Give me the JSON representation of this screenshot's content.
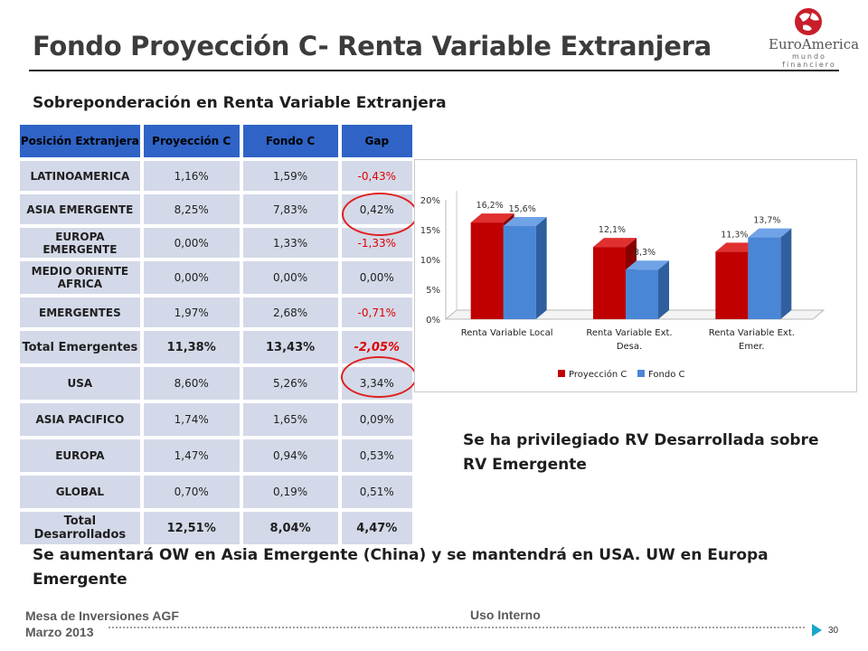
{
  "header": {
    "title": "Fondo Proyección C- Renta Variable Extranjera",
    "logo_name": "EuroAmerica",
    "logo_tagline": "mundo financiero"
  },
  "subtitle": "Sobreponderación en Renta Variable Extranjera",
  "table": {
    "headers": [
      "Posición Extranjera",
      "Proyección C",
      "Fondo C",
      "Gap"
    ],
    "rows": [
      {
        "region": "LATINOAMERICA",
        "proyeccion": "1,16%",
        "fondo": "1,59%",
        "gap": "-0,43%"
      },
      {
        "region": "ASIA EMERGENTE",
        "proyeccion": "8,25%",
        "fondo": "7,83%",
        "gap": "0,42%"
      },
      {
        "region": "EUROPA EMERGENTE",
        "proyeccion": "0,00%",
        "fondo": "1,33%",
        "gap": "-1,33%"
      },
      {
        "region": "MEDIO ORIENTE AFRICA",
        "proyeccion": "0,00%",
        "fondo": "0,00%",
        "gap": "0,00%"
      },
      {
        "region": "EMERGENTES",
        "proyeccion": "1,97%",
        "fondo": "2,68%",
        "gap": "-0,71%"
      },
      {
        "region": "Total Emergentes",
        "proyeccion": "11,38%",
        "fondo": "13,43%",
        "gap": "-2,05%"
      },
      {
        "region": "USA",
        "proyeccion": "8,60%",
        "fondo": "5,26%",
        "gap": "3,34%"
      },
      {
        "region": "ASIA PACIFICO",
        "proyeccion": "1,74%",
        "fondo": "1,65%",
        "gap": "0,09%"
      },
      {
        "region": "EUROPA",
        "proyeccion": "1,47%",
        "fondo": "0,94%",
        "gap": "0,53%"
      },
      {
        "region": "GLOBAL",
        "proyeccion": "0,70%",
        "fondo": "0,19%",
        "gap": "0,51%"
      },
      {
        "region": "Total Desarrollados",
        "proyeccion": "12,51%",
        "fondo": "8,04%",
        "gap": "4,47%"
      }
    ]
  },
  "chart_data": {
    "type": "bar",
    "categories": [
      "Renta Variable Local",
      "Renta Variable Ext. Desa.",
      "Renta Variable Ext. Emer."
    ],
    "series": [
      {
        "name": "Proyección C",
        "values": [
          16.2,
          12.1,
          11.3
        ],
        "labels": [
          "16,2%",
          "12,1%",
          "11,3%"
        ],
        "color": "#c00000"
      },
      {
        "name": "Fondo C",
        "values": [
          15.6,
          8.3,
          13.7
        ],
        "labels": [
          "15,6%",
          "8,3%",
          "13,7%"
        ],
        "color": "#4a86d6"
      }
    ],
    "yticks": [
      "0%",
      "5%",
      "10%",
      "15%",
      "20%"
    ],
    "ylim": [
      0,
      20
    ],
    "legend": "bottom",
    "grid": false,
    "style": "3d"
  },
  "notes": {
    "note1": "Se ha privilegiado RV Desarrollada sobre RV Emergente",
    "note2": "Se aumentará OW en Asia Emergente (China) y se mantendrá en  USA. UW en Europa Emergente"
  },
  "footer": {
    "line1": "Mesa de Inversiones AGF",
    "line2": "Marzo 2013",
    "center": "Uso Interno",
    "page": "30"
  }
}
